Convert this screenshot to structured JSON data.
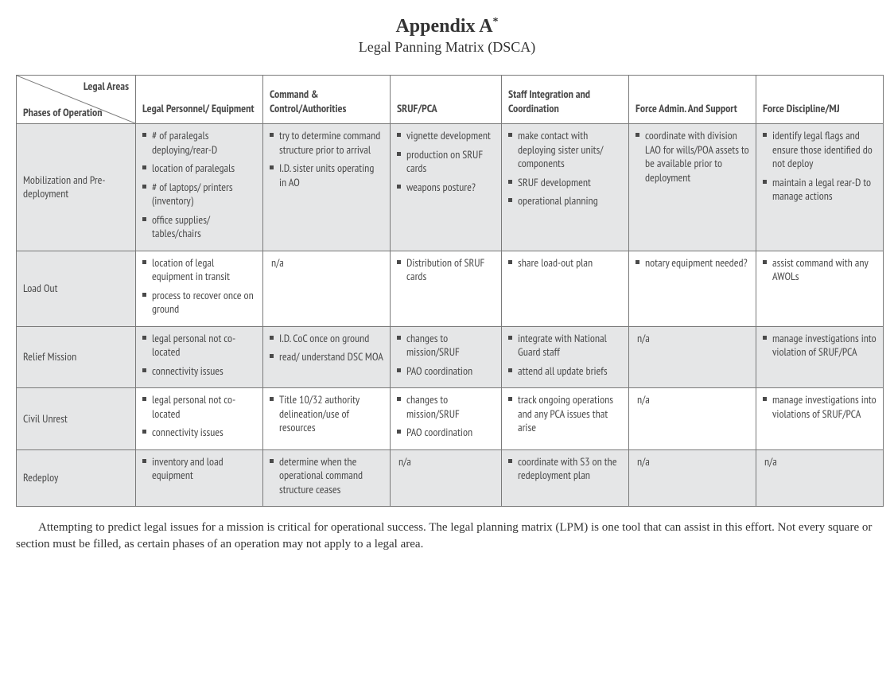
{
  "header": {
    "title_prefix": "Appendix A",
    "title_sup": "*",
    "subtitle": "Legal Panning Matrix (DSCA)"
  },
  "corner": {
    "top_label": "Legal Areas",
    "bottom_label": "Phases of Operation"
  },
  "columns": [
    "Legal Personnel/ Equipment",
    "Command & Control/Authorities",
    "SRUF/PCA",
    "Staff Integration and Coordination",
    "Force Admin. And Support",
    "Force Discipline/MJ"
  ],
  "rows": [
    {
      "phase": "Mobilization and Pre-deployment",
      "cells": [
        [
          "# of paralegals deploying/rear-D",
          "location of paralegals",
          "# of laptops/ printers (inventory)",
          "office supplies/ tables/chairs"
        ],
        [
          "try to determine command structure prior to arrival",
          "I.D. sister units operating in AO"
        ],
        [
          "vignette development",
          "production on SRUF cards",
          "weapons posture?"
        ],
        [
          "make contact with deploying sister units/ components",
          "SRUF development",
          "operational planning"
        ],
        [
          "coordinate with division LAO for wills/POA assets to be available prior to deployment"
        ],
        [
          "identify legal flags and ensure those identified do not deploy",
          "maintain a legal rear-D to manage actions"
        ]
      ]
    },
    {
      "phase": "Load Out",
      "cells": [
        [
          "location of legal equipment in transit",
          "process to recover once on ground"
        ],
        "n/a",
        [
          "Distribution of SRUF cards"
        ],
        [
          "share load-out plan"
        ],
        [
          "notary equipment needed?"
        ],
        [
          "assist command with any AWOLs"
        ]
      ]
    },
    {
      "phase": "Relief Mission",
      "cells": [
        [
          "legal personal not co-located",
          "connectivity issues"
        ],
        [
          "I.D. CoC once on ground",
          "read/ understand DSC MOA"
        ],
        [
          "changes to mission/SRUF",
          "PAO coordination"
        ],
        [
          "integrate with National Guard staff",
          "attend all update briefs"
        ],
        "n/a",
        [
          "manage investigations into violation of SRUF/PCA"
        ]
      ]
    },
    {
      "phase": "Civil Unrest",
      "cells": [
        [
          "legal personal not co-located",
          "connectivity issues"
        ],
        [
          "Title 10/32 authority delineation/use of resources"
        ],
        [
          "changes to mission/SRUF",
          "PAO coordination"
        ],
        [
          "track ongoing operations and any PCA issues that arise"
        ],
        "n/a",
        [
          "manage investigations into violations of SRUF/PCA"
        ]
      ]
    },
    {
      "phase": "Redeploy",
      "cells": [
        [
          "inventory and load equipment"
        ],
        [
          "determine when the operational command structure ceases"
        ],
        "n/a",
        [
          "coordinate with S3 on the redeployment plan"
        ],
        "n/a",
        "n/a"
      ]
    }
  ],
  "footnote": "Attempting to predict legal issues for a mission is critical for operational success. The legal planning matrix (LPM) is one tool that can assist in this effort. Not every square or section must be filled, as certain phases of an operation may not apply to a legal area."
}
